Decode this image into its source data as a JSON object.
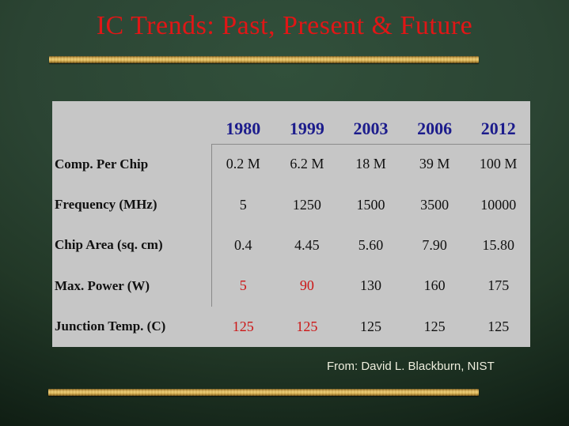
{
  "slide": {
    "title": "IC Trends: Past, Present & Future",
    "attribution": "From: David L. Blackburn, NIST"
  },
  "table": {
    "years": [
      "1980",
      "1999",
      "2003",
      "2006",
      "2012"
    ],
    "rows": [
      {
        "label": "Comp. Per Chip",
        "values": [
          {
            "text": "0.2 M",
            "color": "black"
          },
          {
            "text": "6.2 M",
            "color": "black"
          },
          {
            "text": "18 M",
            "color": "black"
          },
          {
            "text": "39 M",
            "color": "black"
          },
          {
            "text": "100 M",
            "color": "black"
          }
        ]
      },
      {
        "label": "Frequency (MHz)",
        "values": [
          {
            "text": "5",
            "color": "black"
          },
          {
            "text": "1250",
            "color": "black"
          },
          {
            "text": "1500",
            "color": "black"
          },
          {
            "text": "3500",
            "color": "black"
          },
          {
            "text": "10000",
            "color": "black"
          }
        ]
      },
      {
        "label": "Chip Area (sq. cm)",
        "values": [
          {
            "text": "0.4",
            "color": "black"
          },
          {
            "text": "4.45",
            "color": "black"
          },
          {
            "text": "5.60",
            "color": "black"
          },
          {
            "text": "7.90",
            "color": "black"
          },
          {
            "text": "15.80",
            "color": "black"
          }
        ]
      },
      {
        "label": "Max. Power (W)",
        "values": [
          {
            "text": "5",
            "color": "red"
          },
          {
            "text": "90",
            "color": "red"
          },
          {
            "text": "130",
            "color": "black"
          },
          {
            "text": "160",
            "color": "black"
          },
          {
            "text": "175",
            "color": "black"
          }
        ]
      },
      {
        "label": "Junction Temp. (C)",
        "values": [
          {
            "text": "125",
            "color": "red"
          },
          {
            "text": "125",
            "color": "red"
          },
          {
            "text": "125",
            "color": "black"
          },
          {
            "text": "125",
            "color": "black"
          },
          {
            "text": "125",
            "color": "black"
          }
        ]
      }
    ]
  },
  "colors": {
    "title_red": "#e01616",
    "year_navy": "#1c1c8c",
    "value_red": "#cc1616",
    "value_black": "#111111",
    "table_bg": "#c6c6c6",
    "gold_bar": "#e3bd5f",
    "attribution_ivory": "#eeeedd",
    "background_green": "#2b4433"
  }
}
